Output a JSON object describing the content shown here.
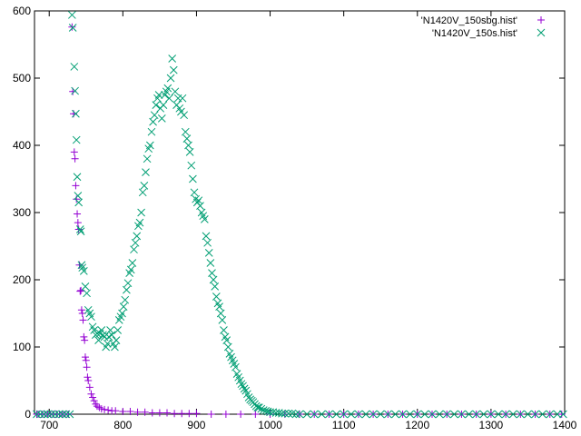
{
  "chart_data": {
    "type": "scatter",
    "title": "",
    "xlabel": "",
    "ylabel": "",
    "xlim": [
      680,
      1400
    ],
    "ylim": [
      0,
      600
    ],
    "x_ticks": [
      700,
      800,
      900,
      1000,
      1100,
      1200,
      1300,
      1400
    ],
    "y_ticks": [
      0,
      100,
      200,
      300,
      400,
      500,
      600
    ],
    "grid": false,
    "legend_position": "top-right",
    "series": [
      {
        "name": "'N1420V_150sbg.hist'",
        "marker": "plus",
        "color": "#9400d3",
        "points": [
          [
            683,
            0
          ],
          [
            686,
            0
          ],
          [
            690,
            0
          ],
          [
            694,
            0
          ],
          [
            698,
            0
          ],
          [
            702,
            0
          ],
          [
            706,
            0
          ],
          [
            710,
            0
          ],
          [
            714,
            0
          ],
          [
            718,
            0
          ],
          [
            722,
            0
          ],
          [
            726,
            0
          ],
          [
            731,
            576
          ],
          [
            732,
            480
          ],
          [
            733,
            447
          ],
          [
            734,
            390
          ],
          [
            735,
            380
          ],
          [
            736,
            340
          ],
          [
            737,
            320
          ],
          [
            738,
            298
          ],
          [
            739,
            285
          ],
          [
            740,
            275
          ],
          [
            741,
            222
          ],
          [
            742,
            183
          ],
          [
            743,
            184
          ],
          [
            744,
            155
          ],
          [
            745,
            150
          ],
          [
            746,
            140
          ],
          [
            747,
            115
          ],
          [
            748,
            110
          ],
          [
            749,
            85
          ],
          [
            750,
            80
          ],
          [
            751,
            70
          ],
          [
            752,
            55
          ],
          [
            753,
            50
          ],
          [
            755,
            40
          ],
          [
            757,
            30
          ],
          [
            759,
            25
          ],
          [
            761,
            20
          ],
          [
            763,
            15
          ],
          [
            765,
            12
          ],
          [
            768,
            10
          ],
          [
            771,
            8
          ],
          [
            775,
            7
          ],
          [
            780,
            6
          ],
          [
            785,
            5
          ],
          [
            790,
            5
          ],
          [
            800,
            4
          ],
          [
            810,
            4
          ],
          [
            820,
            3
          ],
          [
            830,
            3
          ],
          [
            840,
            2
          ],
          [
            850,
            2
          ],
          [
            860,
            2
          ],
          [
            870,
            1
          ],
          [
            880,
            1
          ],
          [
            890,
            1
          ],
          [
            900,
            1
          ],
          [
            920,
            0
          ],
          [
            940,
            0
          ],
          [
            960,
            0
          ],
          [
            980,
            0
          ],
          [
            1000,
            0
          ],
          [
            1020,
            0
          ],
          [
            1040,
            0
          ],
          [
            1060,
            0
          ],
          [
            1080,
            0
          ],
          [
            1100,
            0
          ],
          [
            1120,
            0
          ],
          [
            1140,
            0
          ],
          [
            1160,
            0
          ],
          [
            1180,
            0
          ],
          [
            1200,
            0
          ],
          [
            1220,
            0
          ],
          [
            1240,
            0
          ],
          [
            1260,
            0
          ],
          [
            1280,
            0
          ],
          [
            1300,
            0
          ],
          [
            1320,
            0
          ],
          [
            1340,
            0
          ],
          [
            1360,
            0
          ],
          [
            1380,
            0
          ],
          [
            1396,
            0
          ]
        ]
      },
      {
        "name": "'N1420V_150s.hist'",
        "marker": "cross",
        "color": "#009e73",
        "points": [
          [
            683,
            0
          ],
          [
            688,
            0
          ],
          [
            693,
            0
          ],
          [
            698,
            0
          ],
          [
            703,
            0
          ],
          [
            708,
            0
          ],
          [
            713,
            0
          ],
          [
            718,
            0
          ],
          [
            723,
            0
          ],
          [
            728,
            0
          ],
          [
            731,
            594
          ],
          [
            732,
            575
          ],
          [
            734,
            517
          ],
          [
            735,
            481
          ],
          [
            736,
            447
          ],
          [
            737,
            408
          ],
          [
            738,
            353
          ],
          [
            739,
            325
          ],
          [
            740,
            315
          ],
          [
            742,
            275
          ],
          [
            743,
            272
          ],
          [
            744,
            222
          ],
          [
            745,
            218
          ],
          [
            747,
            213
          ],
          [
            749,
            190
          ],
          [
            751,
            180
          ],
          [
            753,
            155
          ],
          [
            755,
            150
          ],
          [
            757,
            145
          ],
          [
            759,
            130
          ],
          [
            761,
            125
          ],
          [
            763,
            118
          ],
          [
            765,
            120
          ],
          [
            767,
            110
          ],
          [
            769,
            120
          ],
          [
            771,
            125
          ],
          [
            773,
            118
          ],
          [
            775,
            115
          ],
          [
            777,
            100
          ],
          [
            779,
            105
          ],
          [
            781,
            115
          ],
          [
            783,
            125
          ],
          [
            785,
            118
          ],
          [
            787,
            105
          ],
          [
            789,
            100
          ],
          [
            791,
            110
          ],
          [
            793,
            125
          ],
          [
            795,
            140
          ],
          [
            797,
            145
          ],
          [
            799,
            150
          ],
          [
            801,
            160
          ],
          [
            803,
            170
          ],
          [
            805,
            185
          ],
          [
            807,
            195
          ],
          [
            809,
            210
          ],
          [
            811,
            215
          ],
          [
            813,
            225
          ],
          [
            815,
            245
          ],
          [
            817,
            255
          ],
          [
            819,
            265
          ],
          [
            821,
            280
          ],
          [
            823,
            285
          ],
          [
            825,
            300
          ],
          [
            827,
            330
          ],
          [
            829,
            340
          ],
          [
            831,
            360
          ],
          [
            833,
            380
          ],
          [
            835,
            395
          ],
          [
            837,
            400
          ],
          [
            839,
            420
          ],
          [
            841,
            435
          ],
          [
            843,
            445
          ],
          [
            845,
            460
          ],
          [
            847,
            470
          ],
          [
            849,
            475
          ],
          [
            851,
            455
          ],
          [
            853,
            440
          ],
          [
            855,
            460
          ],
          [
            857,
            475
          ],
          [
            859,
            480
          ],
          [
            861,
            485
          ],
          [
            863,
            470
          ],
          [
            865,
            500
          ],
          [
            867,
            529
          ],
          [
            869,
            512
          ],
          [
            871,
            480
          ],
          [
            873,
            460
          ],
          [
            875,
            470
          ],
          [
            877,
            455
          ],
          [
            879,
            450
          ],
          [
            881,
            470
          ],
          [
            883,
            445
          ],
          [
            885,
            420
          ],
          [
            887,
            410
          ],
          [
            889,
            400
          ],
          [
            891,
            390
          ],
          [
            893,
            370
          ],
          [
            895,
            350
          ],
          [
            897,
            330
          ],
          [
            899,
            320
          ],
          [
            901,
            315
          ],
          [
            903,
            318
          ],
          [
            905,
            310
          ],
          [
            907,
            300
          ],
          [
            909,
            295
          ],
          [
            911,
            290
          ],
          [
            913,
            265
          ],
          [
            915,
            255
          ],
          [
            917,
            240
          ],
          [
            919,
            225
          ],
          [
            921,
            210
          ],
          [
            923,
            200
          ],
          [
            925,
            190
          ],
          [
            927,
            175
          ],
          [
            929,
            165
          ],
          [
            931,
            160
          ],
          [
            933,
            150
          ],
          [
            935,
            140
          ],
          [
            937,
            125
          ],
          [
            939,
            115
          ],
          [
            941,
            110
          ],
          [
            943,
            100
          ],
          [
            945,
            90
          ],
          [
            947,
            85
          ],
          [
            949,
            80
          ],
          [
            951,
            75
          ],
          [
            953,
            70
          ],
          [
            955,
            60
          ],
          [
            957,
            55
          ],
          [
            959,
            50
          ],
          [
            961,
            45
          ],
          [
            963,
            42
          ],
          [
            965,
            38
          ],
          [
            967,
            35
          ],
          [
            969,
            30
          ],
          [
            971,
            25
          ],
          [
            973,
            22
          ],
          [
            975,
            20
          ],
          [
            977,
            18
          ],
          [
            979,
            15
          ],
          [
            981,
            12
          ],
          [
            983,
            10
          ],
          [
            985,
            10
          ],
          [
            988,
            8
          ],
          [
            991,
            6
          ],
          [
            994,
            5
          ],
          [
            997,
            4
          ],
          [
            1000,
            3
          ],
          [
            1004,
            3
          ],
          [
            1008,
            2
          ],
          [
            1012,
            2
          ],
          [
            1016,
            1
          ],
          [
            1020,
            1
          ],
          [
            1025,
            1
          ],
          [
            1030,
            1
          ],
          [
            1035,
            0
          ],
          [
            1040,
            0
          ],
          [
            1050,
            0
          ],
          [
            1060,
            0
          ],
          [
            1070,
            0
          ],
          [
            1080,
            0
          ],
          [
            1090,
            0
          ],
          [
            1100,
            0
          ],
          [
            1110,
            0
          ],
          [
            1120,
            0
          ],
          [
            1130,
            0
          ],
          [
            1140,
            0
          ],
          [
            1150,
            0
          ],
          [
            1160,
            0
          ],
          [
            1170,
            0
          ],
          [
            1180,
            0
          ],
          [
            1190,
            0
          ],
          [
            1200,
            0
          ],
          [
            1210,
            0
          ],
          [
            1220,
            0
          ],
          [
            1230,
            0
          ],
          [
            1240,
            0
          ],
          [
            1250,
            0
          ],
          [
            1260,
            0
          ],
          [
            1270,
            0
          ],
          [
            1280,
            0
          ],
          [
            1290,
            0
          ],
          [
            1300,
            0
          ],
          [
            1310,
            0
          ],
          [
            1320,
            0
          ],
          [
            1330,
            0
          ],
          [
            1340,
            0
          ],
          [
            1350,
            0
          ],
          [
            1360,
            0
          ],
          [
            1370,
            0
          ],
          [
            1380,
            0
          ],
          [
            1390,
            0
          ],
          [
            1398,
            0
          ]
        ]
      }
    ]
  }
}
